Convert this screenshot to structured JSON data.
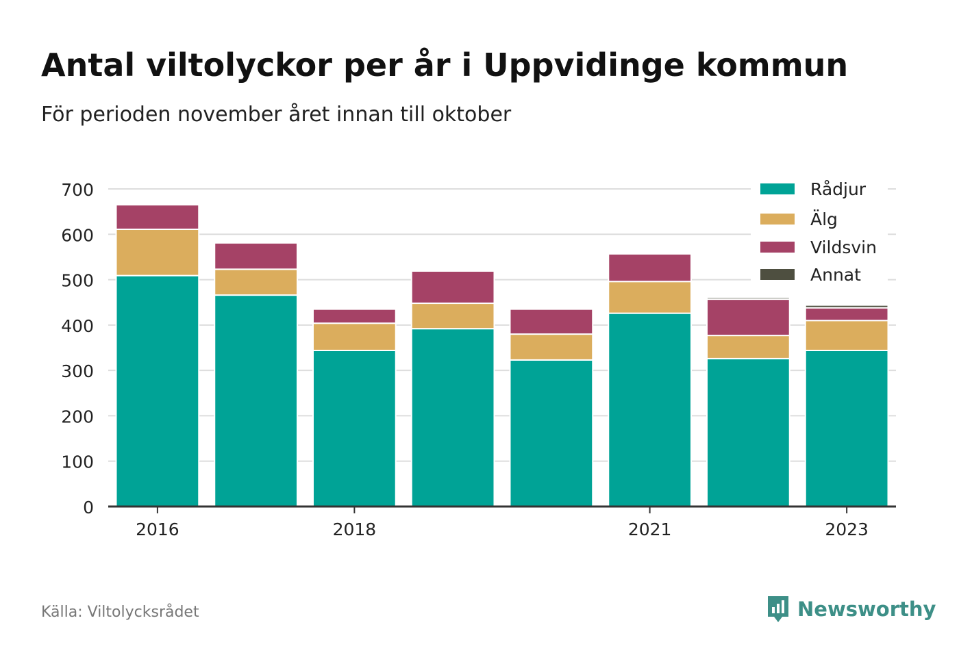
{
  "title": "Antal viltolyckor per år i Uppvidinge kommun",
  "subtitle": "För perioden november året innan till oktober",
  "source": "Källa: Viltolycksrådet",
  "brand": {
    "name": "Newsworthy",
    "icon": "newsworthy-logo-icon",
    "color": "#3d8f87"
  },
  "chart_data": {
    "type": "bar",
    "stacked": true,
    "x": [
      2016,
      2017,
      2018,
      2019,
      2020,
      2021,
      2022,
      2023
    ],
    "x_tick_labels": [
      "2016",
      "2018",
      "2021",
      "2023"
    ],
    "series": [
      {
        "name": "Rådjur",
        "color": "#00a396",
        "values": [
          509,
          466,
          344,
          392,
          323,
          426,
          326,
          344
        ]
      },
      {
        "name": "Älg",
        "color": "#dbad5d",
        "values": [
          102,
          57,
          60,
          56,
          57,
          70,
          51,
          66
        ]
      },
      {
        "name": "Vildsvin",
        "color": "#a54266",
        "values": [
          54,
          58,
          31,
          71,
          55,
          61,
          80,
          28
        ]
      },
      {
        "name": "Annat",
        "color": "#4e4f40",
        "values": [
          0,
          0,
          0,
          0,
          0,
          3,
          4,
          6
        ]
      }
    ],
    "ylim": [
      0,
      700
    ],
    "yticks": [
      0,
      100,
      200,
      300,
      400,
      500,
      600,
      700
    ],
    "grid": true,
    "legend": "top-right",
    "xlabel": "",
    "ylabel": ""
  }
}
